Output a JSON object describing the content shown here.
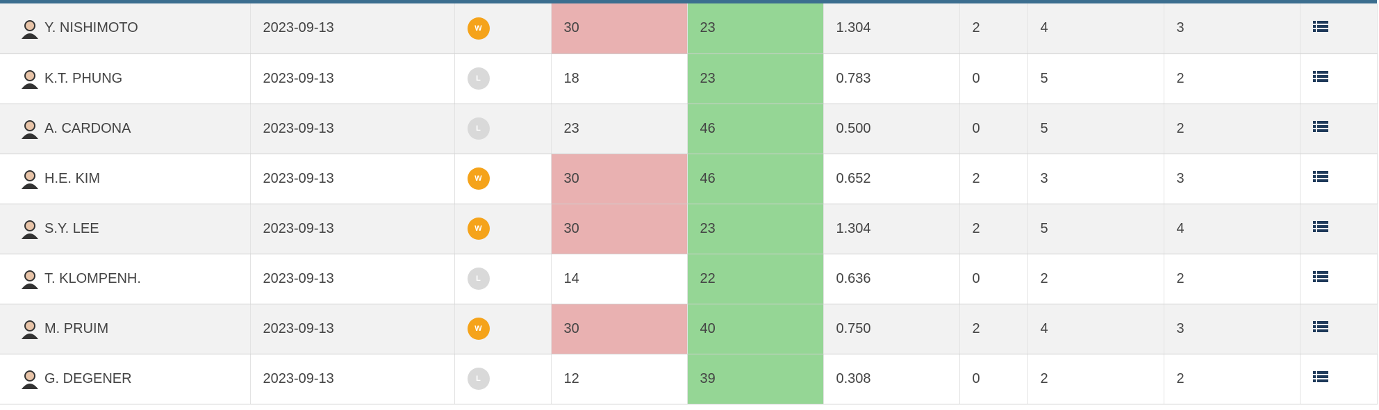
{
  "table": {
    "rows": [
      [
        "Y. NISHIMOTO",
        "2023-09-13",
        "W",
        "30",
        "23",
        "1.304",
        "2",
        "4",
        "3"
      ],
      [
        "K.T. PHUNG",
        "2023-09-13",
        "L",
        "18",
        "23",
        "0.783",
        "0",
        "5",
        "2"
      ],
      [
        "A. CARDONA",
        "2023-09-13",
        "L",
        "23",
        "46",
        "0.500",
        "0",
        "5",
        "2"
      ],
      [
        "H.E. KIM",
        "2023-09-13",
        "W",
        "30",
        "46",
        "0.652",
        "2",
        "3",
        "3"
      ],
      [
        "S.Y. LEE",
        "2023-09-13",
        "W",
        "30",
        "23",
        "1.304",
        "2",
        "5",
        "4"
      ],
      [
        "T. KLOMPENH.",
        "2023-09-13",
        "L",
        "14",
        "22",
        "0.636",
        "0",
        "2",
        "2"
      ],
      [
        "M. PRUIM",
        "2023-09-13",
        "W",
        "30",
        "40",
        "0.750",
        "2",
        "4",
        "3"
      ],
      [
        "G. DEGENER",
        "2023-09-13",
        "L",
        "12",
        "39",
        "0.308",
        "0",
        "2",
        "2"
      ]
    ]
  }
}
